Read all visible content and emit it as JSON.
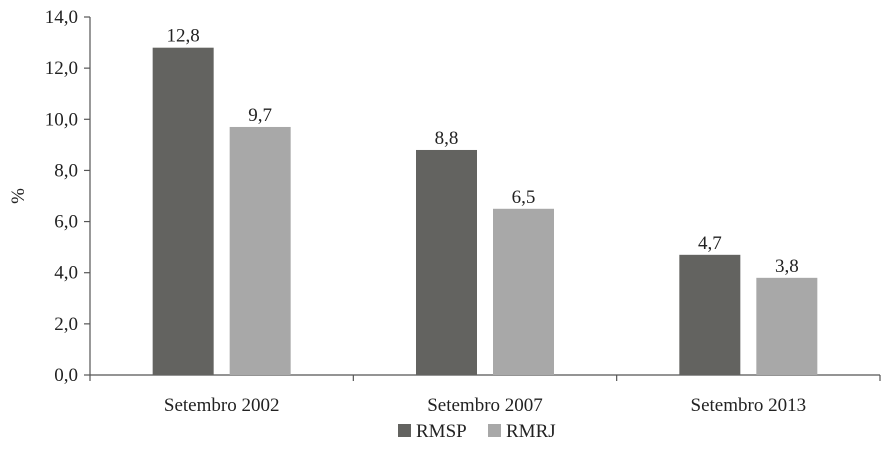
{
  "chart_data": {
    "type": "bar",
    "categories": [
      "Setembro 2002",
      "Setembro 2007",
      "Setembro 2013"
    ],
    "series": [
      {
        "name": "RMSP",
        "values": [
          12.8,
          8.8,
          4.7
        ],
        "value_labels": [
          "12,8",
          "8,8",
          "4,7"
        ],
        "color": "#636360"
      },
      {
        "name": "RMRJ",
        "values": [
          9.7,
          6.5,
          3.8
        ],
        "value_labels": [
          "9,7",
          "6,5",
          "3,8"
        ],
        "color": "#a8a8a8"
      }
    ],
    "ylabel": "%",
    "ylim": [
      0,
      14
    ],
    "yticks": [
      0,
      2,
      4,
      6,
      8,
      10,
      12,
      14
    ],
    "ytick_labels": [
      "0,0",
      "2,0",
      "4,0",
      "6,0",
      "8,0",
      "10,0",
      "12,0",
      "14,0"
    ],
    "grid": false,
    "legend_position": "bottom"
  }
}
